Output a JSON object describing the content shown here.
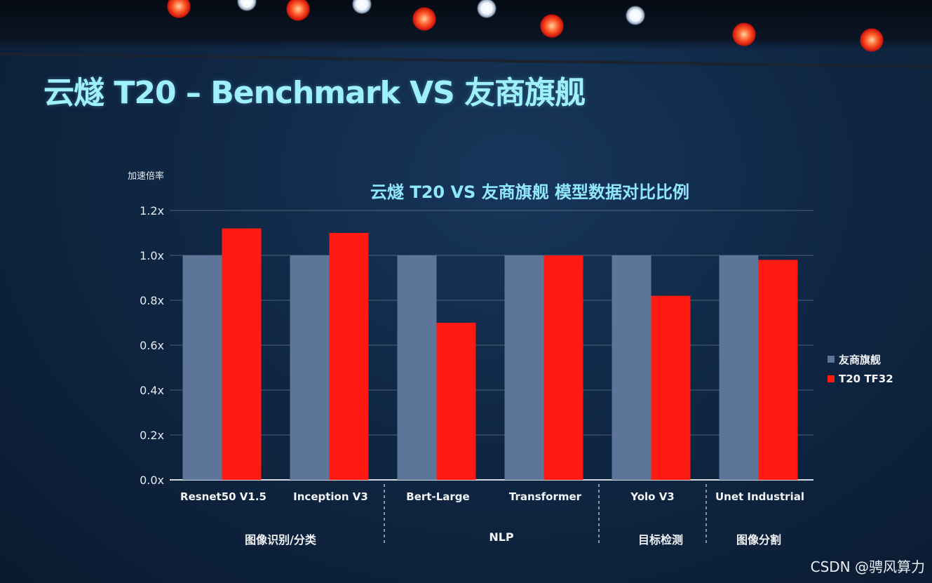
{
  "slide": {
    "title": "云燧 T20 – Benchmark VS 友商旗舰"
  },
  "watermark": "CSDN @骋风算力",
  "chart_data": {
    "type": "bar",
    "title": "云燧 T20 VS 友商旗舰 模型数据对比比例",
    "ylabel": "加速倍率",
    "xlabel": "",
    "ylim": [
      0,
      1.2
    ],
    "yticks": [
      "0.0x",
      "0.2x",
      "0.4x",
      "0.6x",
      "0.8x",
      "1.0x",
      "1.2x"
    ],
    "ytick_values": [
      0,
      0.2,
      0.4,
      0.6,
      0.8,
      1.0,
      1.2
    ],
    "categories": [
      "Resnet50 V1.5",
      "Inception V3",
      "Bert-Large",
      "Transformer",
      "Yolo V3",
      "Unet Industrial"
    ],
    "series": [
      {
        "name": "友商旗舰",
        "color": "#5c7598",
        "values": [
          1.0,
          1.0,
          1.0,
          1.0,
          1.0,
          1.0
        ]
      },
      {
        "name": "T20 TF32",
        "color": "#ff1a12",
        "values": [
          1.12,
          1.1,
          0.7,
          1.0,
          0.82,
          0.98
        ]
      }
    ],
    "groups": [
      {
        "label": "图像识别/分类",
        "categories": [
          "Resnet50 V1.5",
          "Inception V3"
        ]
      },
      {
        "label": "NLP",
        "categories": [
          "Bert-Large",
          "Transformer"
        ]
      },
      {
        "label": "目标检测",
        "categories": [
          "Yolo V3"
        ]
      },
      {
        "label": "图像分割",
        "categories": [
          "Unet Industrial"
        ]
      }
    ],
    "grid": true,
    "legend": "right"
  }
}
